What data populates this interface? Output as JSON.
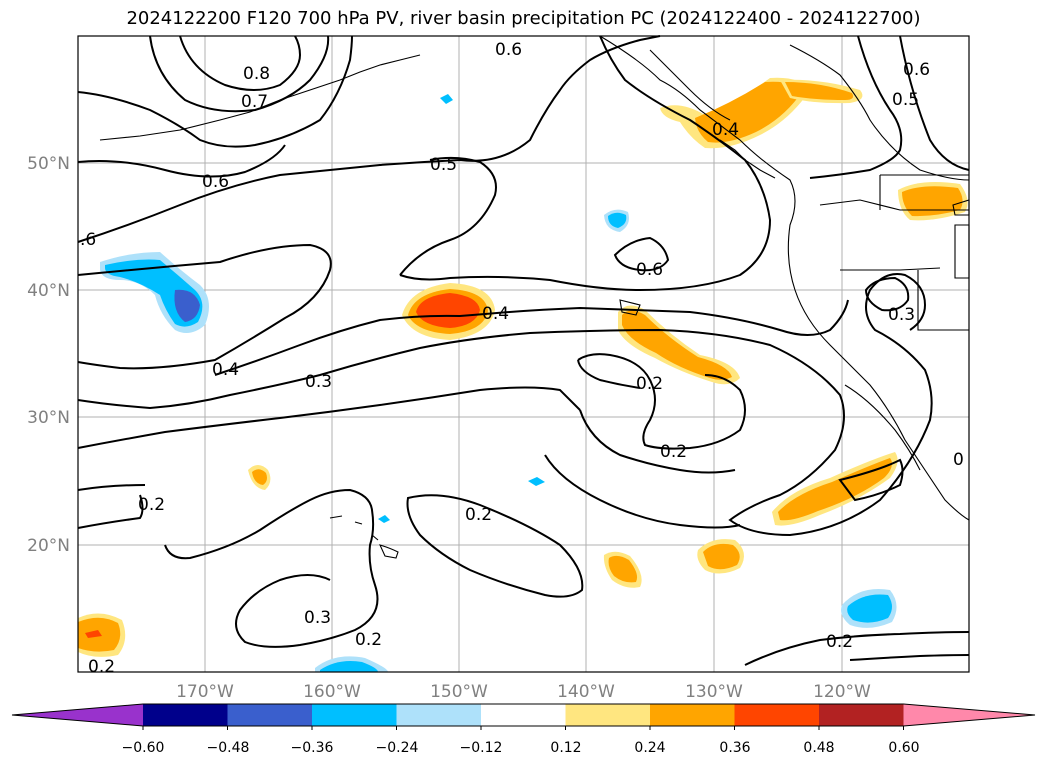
{
  "title": "2024122200 F120 700 hPa PV, river basin precipitation PC (2024122400 - 2024122700)",
  "lat_ticks": [
    "50°N",
    "40°N",
    "30°N",
    "20°N"
  ],
  "lon_ticks": [
    "170°W",
    "160°W",
    "150°W",
    "140°W",
    "130°W",
    "120°W"
  ],
  "contour_labels": [
    "0.8",
    "0.7",
    "0.6",
    "0.6",
    "0.5",
    ".6",
    "0.6",
    "0.5",
    "0.4",
    "0.4",
    "0.3",
    "0.3",
    "0.2",
    "0.2",
    "0.2",
    "0.2",
    "0.3",
    "0.2",
    "0.2",
    "0.2",
    "0.6",
    "0.4",
    "0"
  ],
  "colorbar": {
    "ticks": [
      "−0.60",
      "−0.48",
      "−0.36",
      "−0.24",
      "−0.12",
      "0.12",
      "0.24",
      "0.36",
      "0.48",
      "0.60"
    ],
    "colors": [
      "#9932cc",
      "#00008b",
      "#3a5fcd",
      "#00bfff",
      "#aee1fa",
      "#ffffff",
      "#ffe680",
      "#ffa500",
      "#ff4500",
      "#b22222",
      "#ff88aa"
    ]
  }
}
